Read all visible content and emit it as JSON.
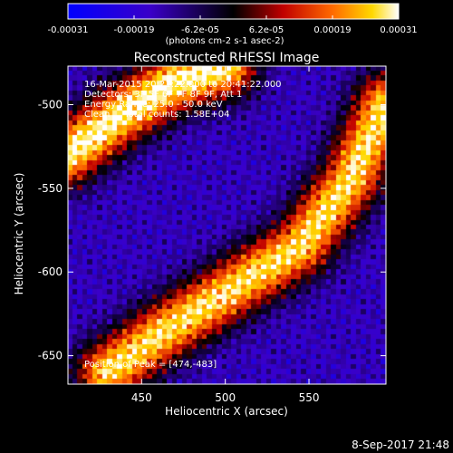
{
  "chart_data": {
    "type": "heatmap",
    "title": "Reconstructed RHESSI Image",
    "xlabel": "Heliocentric X (arcsec)",
    "ylabel": "Heliocentric Y (arcsec)",
    "xlim": [
      406,
      596
    ],
    "ylim": [
      -667,
      -477
    ],
    "xticks": [
      450,
      500,
      550
    ],
    "yticks": [
      -500,
      -550,
      -600,
      -650
    ],
    "colorbar": {
      "label": "(photons cm-2 s-1 asec-2)",
      "range": [
        -0.00031,
        0.00031
      ],
      "tick_labels": [
        "-0.00031",
        "-0.00019",
        "-6.2e-05",
        "6.2e-05",
        "0.00019",
        "0.00031"
      ]
    },
    "annotations": {
      "time": "16-Mar-2015 20:21:22.000 to 20:41:22.000",
      "detectors": "Detectors: 3F 5F 6F 7F 8F 9F, Att 1",
      "energy": "Energy Range: 25.0 - 50.0 keV",
      "clean": "Clean     Total counts: 1.58E+04",
      "peak": "Position of Peak = [474,-483]"
    },
    "emission_bands": [
      {
        "name": "upper-left band",
        "path": [
          [
            406,
            -530
          ],
          [
            440,
            -505
          ],
          [
            470,
            -487
          ],
          [
            500,
            -478
          ]
        ],
        "peak_value": 0.00031
      },
      {
        "name": "right band",
        "path": [
          [
            596,
            -500
          ],
          [
            575,
            -545
          ],
          [
            545,
            -585
          ],
          [
            505,
            -610
          ],
          [
            465,
            -635
          ],
          [
            430,
            -660
          ]
        ],
        "peak_value": 0.00028
      }
    ],
    "background_value": -0.00015
  },
  "footer_date": "8-Sep-2017 21:48"
}
